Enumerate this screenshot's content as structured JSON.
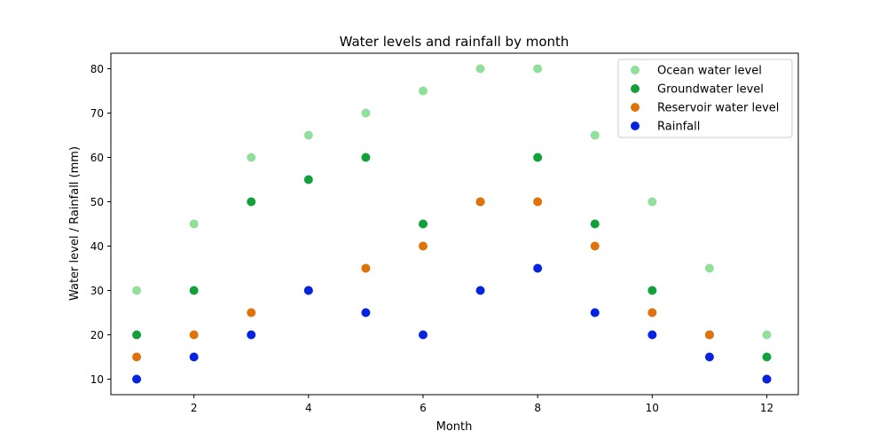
{
  "chart_data": {
    "type": "scatter",
    "title": "Water levels and rainfall by month",
    "xlabel": "Month",
    "ylabel": "Water level / Rainfall (mm)",
    "xlim": [
      0.55,
      12.55
    ],
    "ylim": [
      6.5,
      83.5
    ],
    "xticks": [
      2,
      4,
      6,
      8,
      10,
      12
    ],
    "yticks": [
      10,
      20,
      30,
      40,
      50,
      60,
      70,
      80
    ],
    "grid": false,
    "legend_position": "top-right",
    "x": [
      1,
      2,
      3,
      4,
      5,
      6,
      7,
      8,
      9,
      10,
      11,
      12
    ],
    "series": [
      {
        "name": "Ocean water level",
        "color": "#90e09c",
        "values": [
          30,
          45,
          60,
          65,
          70,
          75,
          80,
          80,
          65,
          50,
          35,
          20
        ]
      },
      {
        "name": "Groundwater level",
        "color": "#12a03a",
        "values": [
          20,
          30,
          50,
          55,
          60,
          45,
          50,
          60,
          45,
          30,
          20,
          15
        ]
      },
      {
        "name": "Reservoir water level",
        "color": "#e0720b",
        "values": [
          15,
          20,
          25,
          30,
          35,
          40,
          50,
          50,
          40,
          25,
          20,
          10
        ]
      },
      {
        "name": "Rainfall",
        "color": "#0624e0",
        "values": [
          10,
          15,
          20,
          30,
          25,
          20,
          30,
          35,
          25,
          20,
          15,
          10
        ]
      }
    ]
  }
}
